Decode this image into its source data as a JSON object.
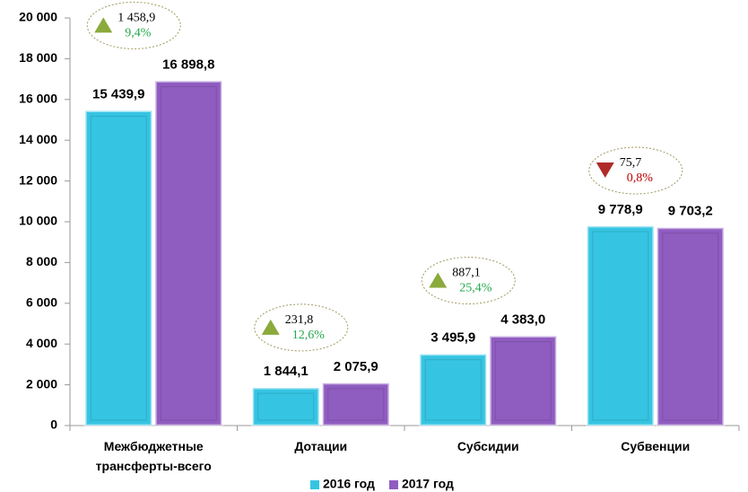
{
  "chart_data": {
    "type": "bar",
    "categories": [
      "Межбюджетные трансферты-всего",
      "Дотации",
      "Субсидии",
      "Субвенции"
    ],
    "series": [
      {
        "name": "2016 год",
        "color": "#35c4e2",
        "values": [
          15439.9,
          1844.1,
          3495.9,
          9778.9
        ],
        "value_labels": [
          "15 439,9",
          "1 844,1",
          "3 495,9",
          "9 778,9"
        ]
      },
      {
        "name": "2017 год",
        "color": "#8f5cc0",
        "values": [
          16898.8,
          2075.9,
          4383.0,
          9703.2
        ],
        "value_labels": [
          "16 898,8",
          "2 075,9",
          "4 383,0",
          "9 703,2"
        ]
      }
    ],
    "ylim": [
      0,
      20000
    ],
    "yticks": [
      0,
      {
        "value": 2000,
        "label": "2 000"
      },
      {
        "value": 4000,
        "label": "4 000"
      },
      {
        "value": 6000,
        "label": "6 000"
      },
      {
        "value": 8000,
        "label": "8 000"
      },
      {
        "value": 10000,
        "label": "10 000"
      },
      {
        "value": 12000,
        "label": "12 000"
      },
      {
        "value": 14000,
        "label": "14 000"
      },
      {
        "value": 16000,
        "label": "16 000"
      },
      {
        "value": 18000,
        "label": "18 000"
      },
      {
        "value": 20000,
        "label": "20 000"
      }
    ],
    "annotations": [
      {
        "text": "1 458,9",
        "percent": "9,4%",
        "direction": "up"
      },
      {
        "text": "231,8",
        "percent": "12,6%",
        "direction": "up"
      },
      {
        "text": "887,1",
        "percent": "25,4%",
        "direction": "up"
      },
      {
        "text": "75,7",
        "percent": "0,8%",
        "direction": "down"
      }
    ],
    "legend": "bottom"
  }
}
